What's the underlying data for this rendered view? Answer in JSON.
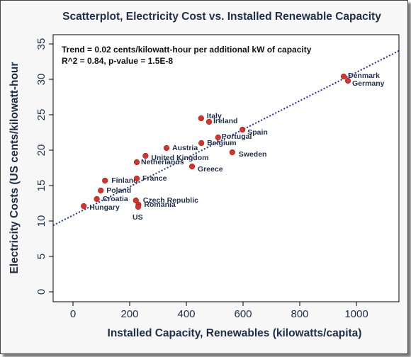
{
  "chart_data": {
    "type": "scatter",
    "title": "Scatterplot, Electricity Cost vs. Installed Renewable Capacity",
    "xlabel": "Installed Capacity, Renewables (kilowatts/capita)",
    "ylabel": "Electricity Costs (US cents/kilowatt-hour",
    "xlim": [
      -70,
      1150
    ],
    "ylim": [
      -1.4,
      36.3
    ],
    "xticks": [
      0,
      200,
      400,
      600,
      800,
      1000
    ],
    "yticks": [
      0,
      5,
      10,
      15,
      20,
      25,
      30,
      35
    ],
    "grid": false,
    "annotation": [
      "Trend = 0.02 cents/kilowatt-hour per additional kW of capacity",
      "R^2 = 0.84, p-value = 1.5E-8"
    ],
    "trendline": {
      "intercept": 10.8,
      "slope": 0.0202
    },
    "points": [
      {
        "label": "Denmark",
        "x": 955,
        "y": 30.4
      },
      {
        "label": "Germany",
        "x": 970,
        "y": 29.8
      },
      {
        "label": "Italy",
        "x": 452,
        "y": 24.5
      },
      {
        "label": "Ireland",
        "x": 480,
        "y": 24.0
      },
      {
        "label": "Spain",
        "x": 598,
        "y": 22.9
      },
      {
        "label": "Portugal",
        "x": 512,
        "y": 21.8
      },
      {
        "label": "Belgium",
        "x": 453,
        "y": 21.0
      },
      {
        "label": "Austria",
        "x": 330,
        "y": 20.3
      },
      {
        "label": "Sweden",
        "x": 562,
        "y": 19.7
      },
      {
        "label": "United Kingdom",
        "x": 256,
        "y": 19.2
      },
      {
        "label": "Netherlands",
        "x": 225,
        "y": 18.3
      },
      {
        "label": "Greece",
        "x": 420,
        "y": 17.7
      },
      {
        "label": "Finland",
        "x": 113,
        "y": 15.7
      },
      {
        "label": "France",
        "x": 225,
        "y": 16.0
      },
      {
        "label": "Poland",
        "x": 98,
        "y": 14.3
      },
      {
        "label": "Croatia",
        "x": 84,
        "y": 13.1
      },
      {
        "label": "Czech Republic",
        "x": 222,
        "y": 12.9
      },
      {
        "label": "Romania",
        "x": 231,
        "y": 12.3
      },
      {
        "label": "Hungary",
        "x": 38,
        "y": 12.1
      },
      {
        "label": "US",
        "x": 230,
        "y": 12.0
      }
    ]
  }
}
